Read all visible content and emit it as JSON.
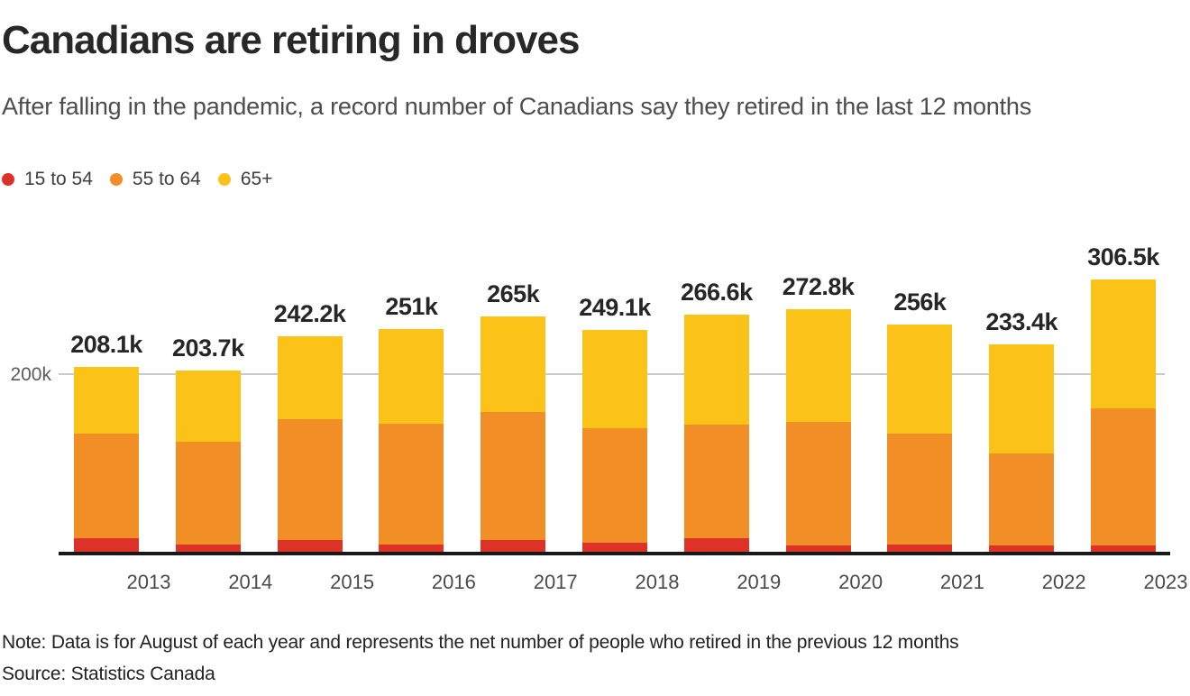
{
  "header": {
    "title": "Canadians are retiring in droves",
    "subtitle": "After falling in the pandemic, a record number of Canadians say they retired in the last 12 months"
  },
  "legend": [
    {
      "label": "15 to 54",
      "color": "#dc3228"
    },
    {
      "label": "55 to 64",
      "color": "#f28e26"
    },
    {
      "label": "65+",
      "color": "#fbc217"
    }
  ],
  "chart_data": {
    "type": "bar",
    "stacked": true,
    "title": "Canadians are retiring in droves",
    "categories": [
      2013,
      2014,
      2015,
      2016,
      2017,
      2018,
      2019,
      2020,
      2021,
      2022,
      2023
    ],
    "series": [
      {
        "name": "15 to 54",
        "color": "#dc3228",
        "values": [
          16.0,
          9.3,
          14.4,
          9.3,
          13.7,
          10.9,
          16.0,
          7.6,
          9.6,
          8.3,
          7.6
        ]
      },
      {
        "name": "55 to 64",
        "color": "#f28e26",
        "values": [
          116.9,
          114.7,
          135.0,
          135.3,
          143.5,
          128.6,
          127.0,
          139.0,
          123.8,
          102.9,
          153.9
        ]
      },
      {
        "name": "65+",
        "color": "#fbc217",
        "values": [
          75.2,
          79.7,
          92.8,
          106.4,
          107.8,
          109.6,
          123.6,
          126.2,
          122.6,
          122.2,
          145.0
        ]
      }
    ],
    "totals": [
      208.1,
      203.7,
      242.2,
      251.0,
      265.0,
      249.1,
      266.6,
      272.8,
      256.0,
      233.4,
      306.5
    ],
    "total_labels": [
      "208.1k",
      "203.7k",
      "242.2k",
      "251k",
      "265k",
      "249.1k",
      "266.6k",
      "272.8k",
      "256k",
      "233.4k",
      "306.5k"
    ],
    "value_scale": "thousands",
    "ylim": [
      0,
      310
    ],
    "y_axis": {
      "tick_label": "200k",
      "tick_value": 200,
      "gridline": true
    },
    "legend_position": "top-left",
    "gridline_color": "#c9c9c9",
    "axis_color": "#191919"
  },
  "footer": {
    "note": "Note: Data is for August of each year and represents the net number of people who retired in the previous 12 months",
    "source": "Source: Statistics Canada"
  }
}
